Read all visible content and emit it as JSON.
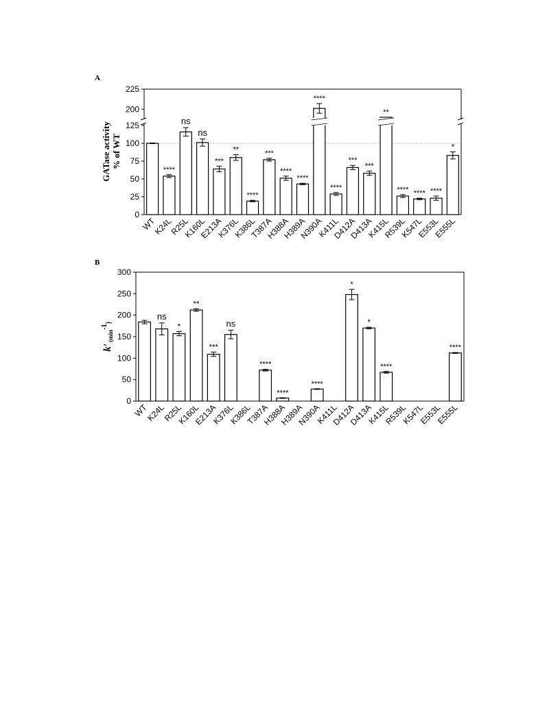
{
  "chart_data": [
    {
      "panel": "A",
      "type": "bar",
      "ylabel": "GATase activity",
      "ylabel2": "% of WT",
      "yticks": [
        0,
        25,
        50,
        75,
        100,
        125,
        200,
        225
      ],
      "ylim": [
        0,
        225
      ],
      "axis_break": [
        125,
        190
      ],
      "reference_line": 100,
      "grid": false,
      "categories": [
        "WT",
        "K24L",
        "R25L",
        "K160L",
        "E213A",
        "K376L",
        "K386L",
        "T387A",
        "H388A",
        "H389A",
        "N390A",
        "K411L",
        "D412A",
        "D413A",
        "K415L",
        "R539L",
        "K547L",
        "E553L",
        "E555L"
      ],
      "values": [
        100,
        54,
        116,
        101,
        64,
        80,
        19,
        77,
        51,
        43,
        201,
        29,
        66,
        58,
        130,
        26,
        22,
        23,
        83
      ],
      "errors": [
        0,
        2,
        6,
        5,
        4,
        4,
        1,
        2,
        3,
        1,
        6,
        2,
        3,
        3,
        4,
        2,
        1,
        3,
        5
      ],
      "significance": [
        "",
        "****",
        "ns",
        "ns",
        "***",
        "**",
        "****",
        "***",
        "****",
        "****",
        "****",
        "****",
        "***",
        "***",
        "**",
        "****",
        "****",
        "****",
        "*"
      ]
    },
    {
      "panel": "B",
      "type": "bar",
      "ylabel": "k′",
      "ylabel_sub": "(min",
      "ylabel_sup": "-1",
      "ylabel_close": ")",
      "yticks": [
        0,
        50,
        100,
        150,
        200,
        250,
        300
      ],
      "ylim": [
        0,
        300
      ],
      "grid": false,
      "categories": [
        "WT",
        "K24L",
        "R25L",
        "K160L",
        "E213A",
        "K376L",
        "K386L",
        "T387A",
        "H388A",
        "H389A",
        "N390A",
        "K411L",
        "D412A",
        "D413A",
        "K415L",
        "R539L",
        "K547L",
        "E553L",
        "E555L"
      ],
      "values": [
        184,
        168,
        157,
        212,
        109,
        155,
        0,
        72,
        7,
        0,
        28,
        0,
        248,
        170,
        67,
        0,
        0,
        0,
        112
      ],
      "errors": [
        4,
        14,
        5,
        3,
        5,
        10,
        0,
        2,
        0,
        0,
        0,
        0,
        12,
        2,
        2,
        0,
        0,
        0,
        1
      ],
      "significance": [
        "",
        "ns",
        "*",
        "**",
        "***",
        "ns",
        "",
        "****",
        "****",
        "",
        "****",
        "",
        "*",
        "*",
        "****",
        "",
        "",
        "",
        "****"
      ]
    }
  ]
}
